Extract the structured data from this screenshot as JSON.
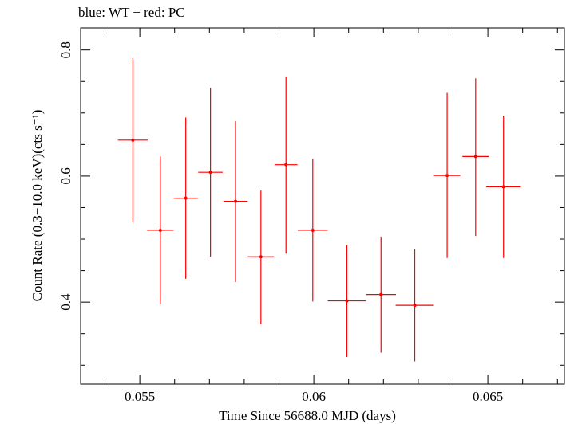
{
  "chart_data": {
    "type": "scatter",
    "title": "blue: WT − red: PC",
    "xlabel": "Time Since 56688.0 MJD (days)",
    "ylabel": "Count Rate (0.3−10.0 keV)(cts s⁻¹)",
    "xlim": [
      0.0533,
      0.0672
    ],
    "ylim": [
      0.27,
      0.835
    ],
    "x_ticks": [
      0.055,
      0.06,
      0.065
    ],
    "x_tick_labels": [
      "0.055",
      "0.06",
      "0.065"
    ],
    "y_ticks": [
      0.4,
      0.6,
      0.8
    ],
    "y_tick_labels": [
      "0.4",
      "0.6",
      "0.8"
    ],
    "grid": false,
    "series": [
      {
        "color": "#ff0000",
        "points": [
          {
            "x": 0.0548,
            "xerr": 0.00043,
            "y": 0.657,
            "ylow": 0.527,
            "yhigh": 0.787
          },
          {
            "x": 0.05559,
            "xerr": 0.00038,
            "y": 0.514,
            "ylow": 0.397,
            "yhigh": 0.631
          },
          {
            "x": 0.05632,
            "xerr": 0.00035,
            "y": 0.565,
            "ylow": 0.437,
            "yhigh": 0.693
          },
          {
            "x": 0.05703,
            "xerr": 0.00035,
            "y": 0.606,
            "ylow": 0.472,
            "yhigh": 0.74
          },
          {
            "x": 0.05775,
            "xerr": 0.00035,
            "y": 0.56,
            "ylow": 0.432,
            "yhigh": 0.687
          },
          {
            "x": 0.05848,
            "xerr": 0.00038,
            "y": 0.472,
            "ylow": 0.365,
            "yhigh": 0.577
          },
          {
            "x": 0.0592,
            "xerr": 0.00033,
            "y": 0.618,
            "ylow": 0.477,
            "yhigh": 0.758
          },
          {
            "x": 0.05997,
            "xerr": 0.00043,
            "y": 0.514,
            "ylow": 0.401,
            "yhigh": 0.627
          },
          {
            "x": 0.06095,
            "xerr": 0.00055,
            "y": 0.402,
            "ylow": 0.313,
            "yhigh": 0.49
          },
          {
            "x": 0.06193,
            "xerr": 0.00043,
            "y": 0.412,
            "ylow": 0.32,
            "yhigh": 0.504
          },
          {
            "x": 0.0629,
            "xerr": 0.00055,
            "y": 0.395,
            "ylow": 0.306,
            "yhigh": 0.484
          },
          {
            "x": 0.06383,
            "xerr": 0.00038,
            "y": 0.601,
            "ylow": 0.47,
            "yhigh": 0.732
          },
          {
            "x": 0.06465,
            "xerr": 0.00038,
            "y": 0.631,
            "ylow": 0.505,
            "yhigh": 0.755
          },
          {
            "x": 0.06545,
            "xerr": 0.0005,
            "y": 0.583,
            "ylow": 0.47,
            "yhigh": 0.696
          }
        ]
      }
    ]
  }
}
